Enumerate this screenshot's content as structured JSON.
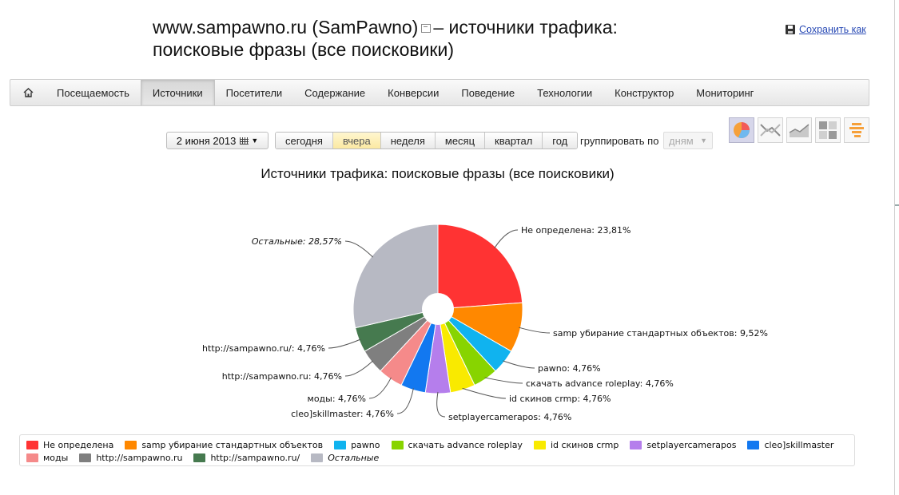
{
  "header": {
    "title_line1_pre": "www.sampawno.ru (SamPawno)",
    "title_line1_post": "– источники трафика:",
    "title_line2": "поисковые фразы (все поисковики)",
    "save_label": "Сохранить как"
  },
  "nav": {
    "home_icon": "home-icon",
    "items": [
      "Посещаемость",
      "Источники",
      "Посетители",
      "Содержание",
      "Конверсии",
      "Поведение",
      "Технологии",
      "Конструктор",
      "Мониторинг"
    ],
    "active": "Источники"
  },
  "toolbar": {
    "date": "2 июня 2013",
    "periods": [
      "сегодня",
      "вчера",
      "неделя",
      "месяц",
      "квартал",
      "год"
    ],
    "selected_period": "вчера",
    "group_label": "группировать по",
    "group_value": "дням",
    "view_icons": [
      "pie-chart-icon",
      "line-chart-icon",
      "area-chart-icon",
      "table-icon",
      "bar-list-icon"
    ]
  },
  "chart_data": {
    "type": "pie",
    "title": "Источники трафика: поисковые фразы (все поисковики)",
    "slices": [
      {
        "label": "Не определена",
        "value": 23.81,
        "color": "#ff3333",
        "display": "Не определена: 23,81%"
      },
      {
        "label": "samp убирание стандартных объектов",
        "value": 9.52,
        "color": "#ff8800",
        "display": "samp убирание стандартных объектов: 9,52%"
      },
      {
        "label": "pawno",
        "value": 4.76,
        "color": "#10b3ef",
        "display": "pawno: 4,76%"
      },
      {
        "label": "скачать advance roleplay",
        "value": 4.76,
        "color": "#88d400",
        "display": "скачать advance roleplay: 4,76%"
      },
      {
        "label": "id скинов crmp",
        "value": 4.76,
        "color": "#f9ea00",
        "display": "id скинов crmp: 4,76%"
      },
      {
        "label": "setplayercamerapos",
        "value": 4.76,
        "color": "#b57eec",
        "display": "setplayercamerapos: 4,76%"
      },
      {
        "label": "cleo]skillmaster",
        "value": 4.76,
        "color": "#1278f0",
        "display": "cleo]skillmaster: 4,76%"
      },
      {
        "label": "моды",
        "value": 4.76,
        "color": "#f58a8a",
        "display": "моды: 4,76%"
      },
      {
        "label": "http://sampawno.ru",
        "value": 4.76,
        "color": "#7f7f7f",
        "display": "http://sampawno.ru: 4,76%"
      },
      {
        "label": "http://sampawno.ru/",
        "value": 4.76,
        "color": "#467a4f",
        "display": "http://sampawno.ru/: 4,76%"
      },
      {
        "label": "Остальные",
        "value": 28.57,
        "color": "#b7b9c3",
        "display": "Остальные: 28,57%"
      }
    ],
    "legend_position": "bottom"
  }
}
